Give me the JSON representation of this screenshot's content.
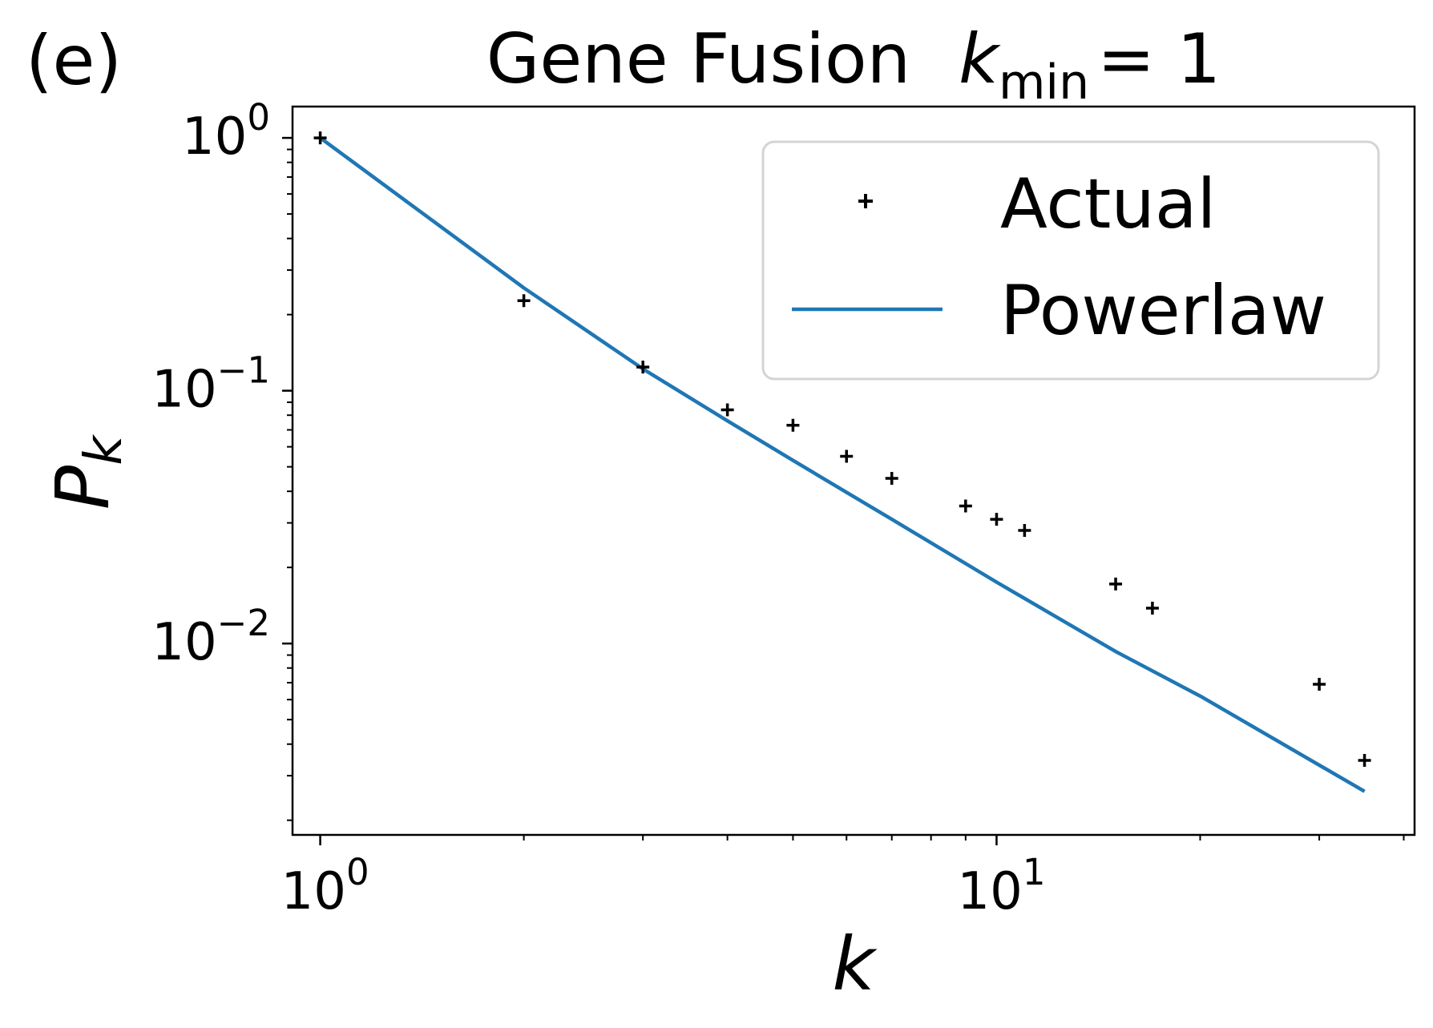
{
  "panel_label": "(e)",
  "chart_data": {
    "type": "scatter",
    "title_main": "Gene Fusion",
    "title_var": "k",
    "title_sub": "min",
    "title_eq": "= 1",
    "xlabel": "k",
    "ylabel_main": "P",
    "ylabel_sub": "k",
    "xscale": "log",
    "yscale": "log",
    "xlim": [
      0.91,
      41.5
    ],
    "ylim": [
      0.00175,
      1.33
    ],
    "grid": false,
    "legend_position": "top-right",
    "x_ticks": [
      {
        "value": 1,
        "base": "10",
        "exp": "0"
      },
      {
        "value": 10,
        "base": "10",
        "exp": "1"
      }
    ],
    "y_ticks": [
      {
        "value": 1,
        "base": "10",
        "exp": "0"
      },
      {
        "value": 0.1,
        "base": "10",
        "exp": "−1"
      },
      {
        "value": 0.01,
        "base": "10",
        "exp": "−2"
      }
    ],
    "series": [
      {
        "name": "Actual",
        "kind": "scatter",
        "marker": "plus",
        "color": "#000000",
        "points": [
          [
            1,
            1.0
          ],
          [
            2,
            0.227
          ],
          [
            3,
            0.124
          ],
          [
            4,
            0.084
          ],
          [
            5,
            0.073
          ],
          [
            6,
            0.055
          ],
          [
            7,
            0.045
          ],
          [
            9,
            0.035
          ],
          [
            10,
            0.031
          ],
          [
            11,
            0.028
          ],
          [
            15,
            0.0172
          ],
          [
            17,
            0.0138
          ],
          [
            30,
            0.0069
          ],
          [
            35,
            0.00345
          ]
        ]
      },
      {
        "name": "Powerlaw",
        "kind": "line",
        "color": "#1f77b4",
        "points": [
          [
            1,
            1.0
          ],
          [
            2,
            0.255
          ],
          [
            3,
            0.122
          ],
          [
            4,
            0.076
          ],
          [
            5,
            0.053
          ],
          [
            7,
            0.031
          ],
          [
            10,
            0.0175
          ],
          [
            15,
            0.0093
          ],
          [
            20,
            0.0062
          ],
          [
            35,
            0.0026
          ]
        ]
      }
    ]
  }
}
